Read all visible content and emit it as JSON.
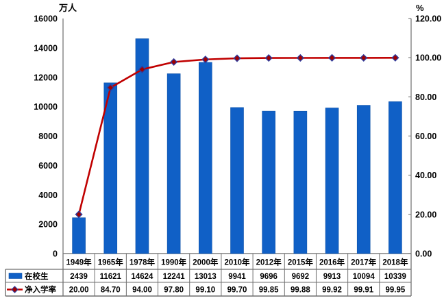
{
  "chart_data": {
    "type": "bar",
    "subtype": "combo-bar-line-with-data-table",
    "categories": [
      "1949年",
      "1965年",
      "1978年",
      "1990年",
      "2000年",
      "2010年",
      "2012年",
      "2015年",
      "2016年",
      "2017年",
      "2018年"
    ],
    "series": [
      {
        "name": "在校生",
        "type": "bar",
        "axis": "left",
        "values": [
          2439,
          11621,
          14624,
          12241,
          13013,
          9941,
          9696,
          9692,
          9913,
          10094,
          10339
        ],
        "labels": [
          "2439",
          "11621",
          "14624",
          "12241",
          "13013",
          "9941",
          "9696",
          "9692",
          "9913",
          "10094",
          "10339"
        ]
      },
      {
        "name": "净入学率",
        "type": "line",
        "axis": "right",
        "values": [
          20.0,
          84.7,
          94.0,
          97.8,
          99.1,
          99.7,
          99.85,
          99.88,
          99.92,
          99.91,
          99.95
        ],
        "labels": [
          "20.00",
          "84.70",
          "94.00",
          "97.80",
          "99.10",
          "99.70",
          "99.85",
          "99.88",
          "99.92",
          "99.91",
          "99.95"
        ]
      }
    ],
    "left_axis": {
      "title": "万人",
      "min": 0,
      "max": 16000,
      "step": 2000,
      "tick_labels": [
        "0",
        "2000",
        "4000",
        "6000",
        "8000",
        "10000",
        "12000",
        "14000",
        "16000"
      ]
    },
    "right_axis": {
      "title": "%",
      "min": 0,
      "max": 120,
      "step": 20,
      "tick_labels": [
        "0.00",
        "20.00",
        "40.00",
        "60.00",
        "80.00",
        "100.00",
        "120.00"
      ]
    },
    "grid": false,
    "legend_position": "data-table-left-column",
    "colors": {
      "bar_fill": "#1060C6",
      "bar_border": "#0C51A8",
      "line": "#C00000",
      "marker_fill": "#A00000",
      "marker_border": "#2E3C9E",
      "axis_line": "#808080",
      "table_border": "#6E6E6E",
      "text": "#000000",
      "background": "#FFFFFF"
    }
  }
}
